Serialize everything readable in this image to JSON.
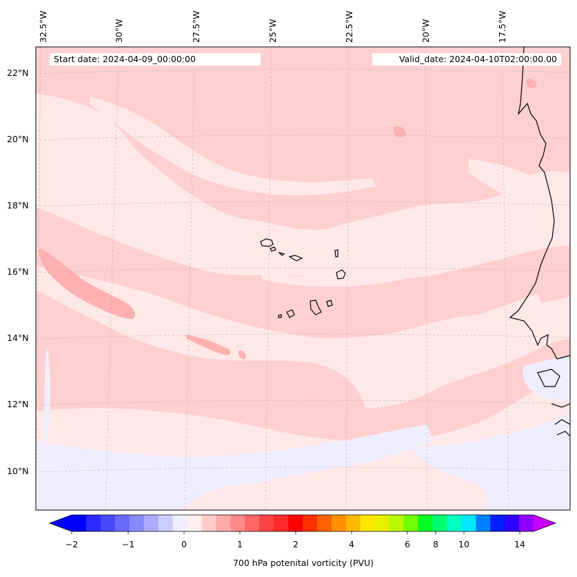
{
  "header": {
    "start_date": "Start date: 2024-04-09_00:00:00",
    "valid_date": "Valid_date: 2024-04-10T02:00:00.00"
  },
  "axes": {
    "longitude_labels": [
      "32.5°W",
      "30°W",
      "27.5°W",
      "25°W",
      "22.5°W",
      "20°W",
      "17.5°W"
    ],
    "latitude_labels": [
      "22°N",
      "20°N",
      "18°N",
      "16°N",
      "14°N",
      "12°N",
      "10°N"
    ],
    "gridlines": true
  },
  "colorbar": {
    "title": "700 hPa potenital vorticity (PVU)",
    "tick_labels": [
      "−2",
      "−1",
      "0",
      "1",
      "2",
      "4",
      "6",
      "8",
      "10",
      "14"
    ],
    "colors": [
      "#0000ff",
      "#2a2aff",
      "#4848ff",
      "#6a6aff",
      "#8888ff",
      "#aaaaff",
      "#ccccff",
      "#eeeeff",
      "#ffeeee",
      "#ffcccc",
      "#ffaaaa",
      "#ff8888",
      "#ff6666",
      "#ff4444",
      "#ff2a2a",
      "#ff0000",
      "#ff3000",
      "#ff6000",
      "#ff9000",
      "#ffb800",
      "#ffe800",
      "#e8f000",
      "#b8f800",
      "#70ff00",
      "#00ff20",
      "#00ff70",
      "#00ffc0",
      "#00e8ff",
      "#0080ff",
      "#0020ff",
      "#3000ff",
      "#9000ff"
    ],
    "extend_low_color": "#0000ff",
    "extend_high_color": "#c800ff"
  },
  "field_colors": {
    "background": "#ffe8e8",
    "band": "#ffd0d0",
    "stronger": "#ffb0b0",
    "weak_negative": "#eeeeff"
  }
}
